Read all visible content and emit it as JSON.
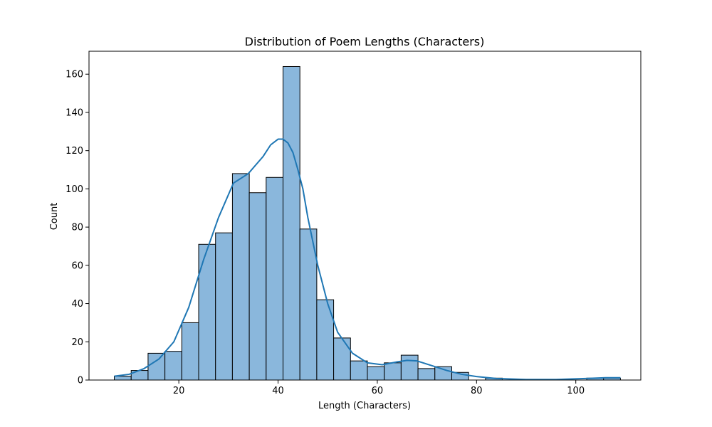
{
  "chart_data": {
    "type": "bar",
    "title": "Distribution of Poem Lengths (Characters)",
    "xlabel": "Length (Characters)",
    "ylabel": "Count",
    "xlim": [
      1.9,
      113.1
    ],
    "ylim": [
      0,
      172
    ],
    "xticks": [
      20,
      40,
      60,
      80,
      100
    ],
    "yticks": [
      0,
      20,
      40,
      60,
      80,
      100,
      120,
      140,
      160
    ],
    "grid": false,
    "bar_fill": "#8ab7dc",
    "bar_edge": "#000000",
    "kde_color": "#1f77b4",
    "bins": [
      {
        "start": 7.0,
        "end": 10.4,
        "count": 2
      },
      {
        "start": 10.4,
        "end": 13.8,
        "count": 5
      },
      {
        "start": 13.8,
        "end": 17.2,
        "count": 14
      },
      {
        "start": 17.2,
        "end": 20.6,
        "count": 15
      },
      {
        "start": 20.6,
        "end": 24.0,
        "count": 30
      },
      {
        "start": 24.0,
        "end": 27.4,
        "count": 71
      },
      {
        "start": 27.4,
        "end": 30.8,
        "count": 77
      },
      {
        "start": 30.8,
        "end": 34.2,
        "count": 108
      },
      {
        "start": 34.2,
        "end": 37.6,
        "count": 98
      },
      {
        "start": 37.6,
        "end": 41.0,
        "count": 106
      },
      {
        "start": 41.0,
        "end": 44.4,
        "count": 164
      },
      {
        "start": 44.4,
        "end": 47.8,
        "count": 79
      },
      {
        "start": 47.8,
        "end": 51.2,
        "count": 42
      },
      {
        "start": 51.2,
        "end": 54.6,
        "count": 22
      },
      {
        "start": 54.6,
        "end": 58.0,
        "count": 10
      },
      {
        "start": 58.0,
        "end": 61.4,
        "count": 7
      },
      {
        "start": 61.4,
        "end": 64.8,
        "count": 9
      },
      {
        "start": 64.8,
        "end": 68.2,
        "count": 13
      },
      {
        "start": 68.2,
        "end": 71.6,
        "count": 6
      },
      {
        "start": 71.6,
        "end": 75.0,
        "count": 7
      },
      {
        "start": 75.0,
        "end": 78.4,
        "count": 4
      },
      {
        "start": 78.4,
        "end": 81.8,
        "count": 0
      },
      {
        "start": 81.8,
        "end": 85.2,
        "count": 1
      },
      {
        "start": 85.2,
        "end": 88.6,
        "count": 0
      },
      {
        "start": 88.6,
        "end": 92.0,
        "count": 0
      },
      {
        "start": 92.0,
        "end": 95.4,
        "count": 0
      },
      {
        "start": 95.4,
        "end": 98.8,
        "count": 0
      },
      {
        "start": 98.8,
        "end": 102.2,
        "count": 0
      },
      {
        "start": 102.2,
        "end": 105.6,
        "count": 1
      },
      {
        "start": 105.6,
        "end": 109.0,
        "count": 1
      }
    ],
    "kde": {
      "x": [
        7,
        10,
        13,
        16,
        19,
        22,
        25,
        28,
        31,
        34,
        37,
        38.5,
        40,
        41,
        42,
        43,
        44,
        45,
        46,
        48,
        50,
        52,
        55,
        58,
        61,
        64,
        66,
        68,
        71,
        74,
        77,
        80,
        84,
        90,
        96,
        102,
        106,
        109
      ],
      "y": [
        2,
        3,
        6,
        11,
        20,
        38,
        63,
        85,
        103,
        108,
        117,
        123,
        126,
        126,
        124,
        119,
        110,
        100,
        85,
        60,
        40,
        25,
        14,
        9,
        8,
        9.5,
        10.3,
        10,
        7.5,
        5,
        3,
        1.8,
        0.8,
        0.3,
        0.3,
        0.8,
        1.2,
        1.2
      ]
    }
  }
}
